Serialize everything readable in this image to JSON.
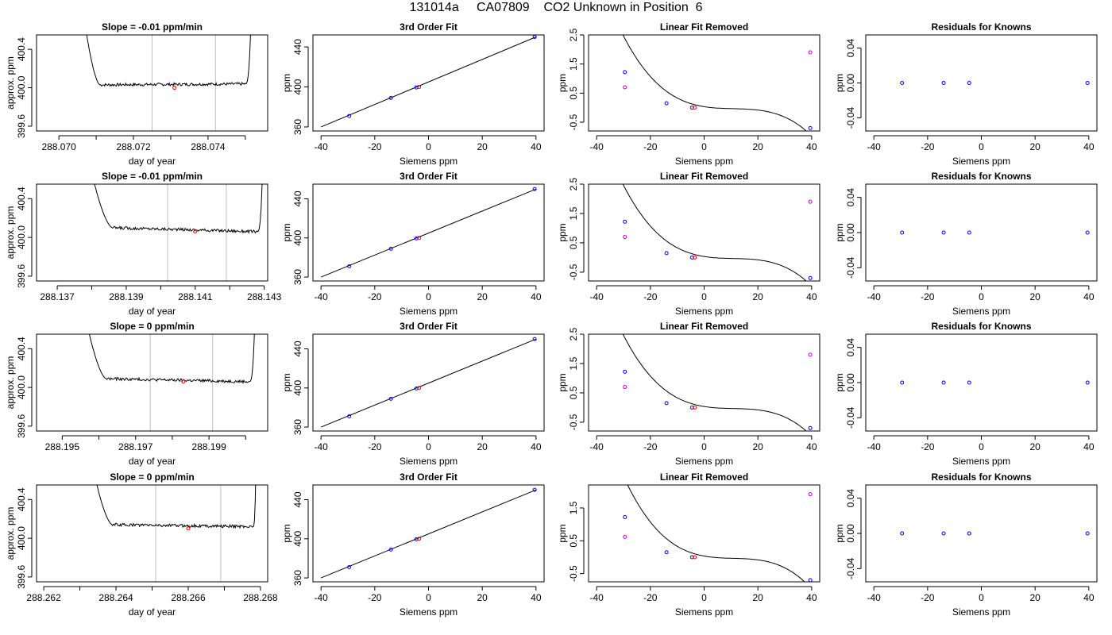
{
  "page_title": "131014a     CA07809    CO2 Unknown in Position  6",
  "colors": {
    "line": "#000000",
    "blue": "#0000ff",
    "red": "#ff0000",
    "magenta": "#d000d0",
    "vline": "#bebebe"
  },
  "chart_data": [
    {
      "type": "line",
      "row": 0,
      "col": 0,
      "title": "Slope =  -0.01  ppm/min",
      "xlabel": "day of year",
      "ylabel": "approx. ppm",
      "xlim": [
        288.0694,
        288.0756
      ],
      "ylim": [
        399.55,
        400.55
      ],
      "xticks": [
        288.07,
        288.071,
        288.072,
        288.073,
        288.074,
        288.075
      ],
      "xticklabels": [
        "288.070",
        "",
        "288.072",
        "",
        "288.074",
        ""
      ],
      "yticks": [
        399.6,
        400.0,
        400.4
      ],
      "yticklabels": [
        "399.6",
        "400.0",
        "400.4"
      ],
      "vlines": [
        288.0725,
        288.0742
      ],
      "marker": {
        "x": 288.0731,
        "y": 400.0
      },
      "trace": {
        "x_start": 288.0706,
        "x_end": 288.0752,
        "plateau_start": 288.0711,
        "plateau_end": 288.075,
        "level_start": 400.03,
        "level_end": 400.04
      }
    },
    {
      "type": "scatter",
      "row": 0,
      "col": 1,
      "title": "3rd Order Fit",
      "xlabel": "Siemens ppm",
      "ylabel": "ppm",
      "xlim": [
        -43,
        43
      ],
      "ylim": [
        356,
        452
      ],
      "xticks": [
        -40,
        -20,
        0,
        20,
        40
      ],
      "yticks": [
        360,
        400,
        440
      ],
      "fit_line": [
        [
          -40,
          360
        ],
        [
          40,
          450
        ]
      ],
      "points": [
        {
          "x": -29.5,
          "y": 371,
          "color": "blue"
        },
        {
          "x": -14,
          "y": 389,
          "color": "blue"
        },
        {
          "x": -4.5,
          "y": 399.5,
          "color": "blue"
        },
        {
          "x": -3.5,
          "y": 400,
          "color": "red"
        },
        {
          "x": 39.5,
          "y": 450,
          "color": "blue"
        }
      ]
    },
    {
      "type": "scatter",
      "row": 0,
      "col": 2,
      "title": "Linear Fit Removed",
      "xlabel": "Siemens ppm",
      "ylabel": "ppm",
      "xlim": [
        -43,
        43
      ],
      "ylim": [
        -0.8,
        2.5
      ],
      "xticks": [
        -40,
        -20,
        0,
        20,
        40
      ],
      "yticks": [
        -0.5,
        0.5,
        1.5,
        2.5
      ],
      "yticklabels": [
        "-0.5",
        "0.5",
        "1.5",
        "2.5"
      ],
      "curve": {
        "a": -3.53e-05,
        "b": 0.00115,
        "c": -0.0147,
        "d": 0.035,
        "x_from": -39,
        "x_to": 40
      },
      "points": [
        {
          "x": -29.5,
          "y": 1.22,
          "color": "blue"
        },
        {
          "x": -14,
          "y": 0.15,
          "color": "blue"
        },
        {
          "x": -4.5,
          "y": 0.0,
          "color": "blue"
        },
        {
          "x": -3.5,
          "y": 0.0,
          "color": "red"
        },
        {
          "x": 39.5,
          "y": -0.7,
          "color": "blue"
        },
        {
          "x": -29.5,
          "y": 0.7,
          "color": "magenta"
        },
        {
          "x": 39.5,
          "y": 1.9,
          "color": "magenta"
        }
      ]
    },
    {
      "type": "scatter",
      "row": 0,
      "col": 3,
      "title": "Residuals for Knowns",
      "xlabel": "Siemens ppm",
      "ylabel": "ppm",
      "xlim": [
        -43,
        43
      ],
      "ylim": [
        -0.055,
        0.055
      ],
      "xticks": [
        -40,
        -20,
        0,
        20,
        40
      ],
      "yticks": [
        -0.04,
        0.0,
        0.04
      ],
      "yticklabels": [
        "-0.04",
        "0.00",
        "0.04"
      ],
      "points": [
        {
          "x": -29.5,
          "y": 0.0,
          "color": "blue"
        },
        {
          "x": -14,
          "y": 0.0,
          "color": "blue"
        },
        {
          "x": -4.5,
          "y": 0.0,
          "color": "blue"
        },
        {
          "x": 39.5,
          "y": 0.0,
          "color": "blue"
        }
      ]
    },
    {
      "type": "line",
      "row": 1,
      "col": 0,
      "title": "Slope =  -0.01  ppm/min",
      "xlabel": "day of year",
      "ylabel": "approx. ppm",
      "xlim": [
        288.1364,
        288.1431
      ],
      "ylim": [
        399.55,
        400.55
      ],
      "xticks": [
        288.137,
        288.138,
        288.139,
        288.14,
        288.141,
        288.142,
        288.143
      ],
      "xticklabels": [
        "288.137",
        "",
        "288.139",
        "",
        "288.141",
        "",
        "288.143"
      ],
      "yticks": [
        399.6,
        400.0,
        400.4
      ],
      "yticklabels": [
        "399.6",
        "400.0",
        "400.4"
      ],
      "vlines": [
        288.1402,
        288.1419
      ],
      "marker": {
        "x": 288.141,
        "y": 400.06
      },
      "trace": {
        "x_start": 288.1378,
        "x_end": 288.143,
        "plateau_start": 288.1386,
        "plateau_end": 288.1428,
        "level_start": 400.1,
        "level_end": 400.06
      }
    },
    {
      "type": "scatter",
      "row": 1,
      "col": 1,
      "title": "3rd Order Fit",
      "xlabel": "Siemens ppm",
      "ylabel": "ppm",
      "xlim": [
        -43,
        43
      ],
      "ylim": [
        356,
        455
      ],
      "xticks": [
        -40,
        -20,
        0,
        20,
        40
      ],
      "yticks": [
        360,
        400,
        440
      ],
      "fit_line": [
        [
          -40,
          360
        ],
        [
          40,
          450
        ]
      ],
      "points": [
        {
          "x": -29.5,
          "y": 371,
          "color": "blue"
        },
        {
          "x": -14,
          "y": 389,
          "color": "blue"
        },
        {
          "x": -4.5,
          "y": 399.5,
          "color": "blue"
        },
        {
          "x": -3.5,
          "y": 400,
          "color": "red"
        },
        {
          "x": 39.5,
          "y": 450,
          "color": "blue"
        }
      ]
    },
    {
      "type": "scatter",
      "row": 1,
      "col": 2,
      "title": "Linear Fit Removed",
      "xlabel": "Siemens ppm",
      "ylabel": "ppm",
      "xlim": [
        -43,
        43
      ],
      "ylim": [
        -0.8,
        2.5
      ],
      "xticks": [
        -40,
        -20,
        0,
        20,
        40
      ],
      "yticks": [
        -0.5,
        0.5,
        1.5,
        2.5
      ],
      "yticklabels": [
        "-0.5",
        "0.5",
        "1.5",
        "2.5"
      ],
      "curve": {
        "a": -3.53e-05,
        "b": 0.00115,
        "c": -0.0147,
        "d": 0.035,
        "x_from": -39,
        "x_to": 40
      },
      "points": [
        {
          "x": -29.5,
          "y": 1.22,
          "color": "blue"
        },
        {
          "x": -14,
          "y": 0.15,
          "color": "blue"
        },
        {
          "x": -4.5,
          "y": 0.0,
          "color": "blue"
        },
        {
          "x": -3.5,
          "y": 0.0,
          "color": "red"
        },
        {
          "x": 39.5,
          "y": -0.7,
          "color": "blue"
        },
        {
          "x": -29.5,
          "y": 0.7,
          "color": "magenta"
        },
        {
          "x": 39.5,
          "y": 1.9,
          "color": "magenta"
        }
      ]
    },
    {
      "type": "scatter",
      "row": 1,
      "col": 3,
      "title": "Residuals for Knowns",
      "xlabel": "Siemens ppm",
      "ylabel": "ppm",
      "xlim": [
        -43,
        43
      ],
      "ylim": [
        -0.055,
        0.055
      ],
      "xticks": [
        -40,
        -20,
        0,
        20,
        40
      ],
      "yticks": [
        -0.04,
        0.0,
        0.04
      ],
      "yticklabels": [
        "-0.04",
        "0.00",
        "0.04"
      ],
      "points": [
        {
          "x": -29.5,
          "y": 0.0,
          "color": "blue"
        },
        {
          "x": -14,
          "y": 0.0,
          "color": "blue"
        },
        {
          "x": -4.5,
          "y": 0.0,
          "color": "blue"
        },
        {
          "x": 39.5,
          "y": 0.0,
          "color": "blue"
        }
      ]
    },
    {
      "type": "line",
      "row": 2,
      "col": 0,
      "title": "Slope =  0  ppm/min",
      "xlabel": "day of year",
      "ylabel": "approx. ppm",
      "xlim": [
        288.1943,
        288.2006
      ],
      "ylim": [
        399.55,
        400.55
      ],
      "xticks": [
        288.195,
        288.196,
        288.197,
        288.198,
        288.199,
        288.2
      ],
      "xticklabels": [
        "288.195",
        "",
        "288.197",
        "",
        "288.199",
        ""
      ],
      "yticks": [
        399.6,
        400.0,
        400.4
      ],
      "yticklabels": [
        "399.6",
        "400.0",
        "400.4"
      ],
      "vlines": [
        288.1974,
        288.1991
      ],
      "marker": {
        "x": 288.1983,
        "y": 400.06
      },
      "trace": {
        "x_start": 288.1955,
        "x_end": 288.2003,
        "plateau_start": 288.1962,
        "plateau_end": 288.2001,
        "level_start": 400.09,
        "level_end": 400.06
      }
    },
    {
      "type": "scatter",
      "row": 2,
      "col": 1,
      "title": "3rd Order Fit",
      "xlabel": "Siemens ppm",
      "ylabel": "ppm",
      "xlim": [
        -43,
        43
      ],
      "ylim": [
        356,
        455
      ],
      "xticks": [
        -40,
        -20,
        0,
        20,
        40
      ],
      "yticks": [
        360,
        400,
        440
      ],
      "fit_line": [
        [
          -40,
          360
        ],
        [
          40,
          450
        ]
      ],
      "points": [
        {
          "x": -29.5,
          "y": 371,
          "color": "blue"
        },
        {
          "x": -14,
          "y": 389,
          "color": "blue"
        },
        {
          "x": -4.5,
          "y": 399.5,
          "color": "blue"
        },
        {
          "x": -3.5,
          "y": 400,
          "color": "red"
        },
        {
          "x": 39.5,
          "y": 450,
          "color": "blue"
        }
      ]
    },
    {
      "type": "scatter",
      "row": 2,
      "col": 2,
      "title": "Linear Fit Removed",
      "xlabel": "Siemens ppm",
      "ylabel": "ppm",
      "xlim": [
        -43,
        43
      ],
      "ylim": [
        -0.8,
        2.5
      ],
      "xticks": [
        -40,
        -20,
        0,
        20,
        40
      ],
      "yticks": [
        -0.5,
        0.5,
        1.5,
        2.5
      ],
      "yticklabels": [
        "-0.5",
        "0.5",
        "1.5",
        "2.5"
      ],
      "curve": {
        "a": -3.53e-05,
        "b": 0.00115,
        "c": -0.0147,
        "d": 0.035,
        "x_from": -39,
        "x_to": 40
      },
      "points": [
        {
          "x": -29.5,
          "y": 1.22,
          "color": "blue"
        },
        {
          "x": -14,
          "y": 0.15,
          "color": "blue"
        },
        {
          "x": -4.5,
          "y": 0.0,
          "color": "blue"
        },
        {
          "x": -3.5,
          "y": 0.0,
          "color": "red"
        },
        {
          "x": 39.5,
          "y": -0.7,
          "color": "blue"
        },
        {
          "x": -29.5,
          "y": 0.7,
          "color": "magenta"
        },
        {
          "x": 39.5,
          "y": 1.8,
          "color": "magenta"
        }
      ]
    },
    {
      "type": "scatter",
      "row": 2,
      "col": 3,
      "title": "Residuals for Knowns",
      "xlabel": "Siemens ppm",
      "ylabel": "ppm",
      "xlim": [
        -43,
        43
      ],
      "ylim": [
        -0.055,
        0.055
      ],
      "xticks": [
        -40,
        -20,
        0,
        20,
        40
      ],
      "yticks": [
        -0.04,
        0.0,
        0.04
      ],
      "yticklabels": [
        "-0.04",
        "0.00",
        "0.04"
      ],
      "points": [
        {
          "x": -29.5,
          "y": 0.0,
          "color": "blue"
        },
        {
          "x": -14,
          "y": 0.0,
          "color": "blue"
        },
        {
          "x": -4.5,
          "y": 0.0,
          "color": "blue"
        },
        {
          "x": 39.5,
          "y": 0.0,
          "color": "blue"
        }
      ]
    },
    {
      "type": "line",
      "row": 3,
      "col": 0,
      "title": "Slope =  0  ppm/min",
      "xlabel": "day of year",
      "ylabel": "approx. ppm",
      "xlim": [
        288.2618,
        288.2682
      ],
      "ylim": [
        399.55,
        400.55
      ],
      "xticks": [
        288.262,
        288.263,
        288.264,
        288.265,
        288.266,
        288.267,
        288.268
      ],
      "xticklabels": [
        "288.262",
        "",
        "288.264",
        "",
        "288.266",
        "",
        "288.268"
      ],
      "yticks": [
        399.6,
        400.0,
        400.4
      ],
      "yticklabels": [
        "399.6",
        "400.0",
        "400.4"
      ],
      "vlines": [
        288.2651,
        288.2669
      ],
      "marker": {
        "x": 288.266,
        "y": 400.1
      },
      "trace": {
        "x_start": 288.2632,
        "x_end": 288.2679,
        "plateau_start": 288.2639,
        "plateau_end": 288.2678,
        "level_start": 400.14,
        "level_end": 400.12
      }
    },
    {
      "type": "scatter",
      "row": 3,
      "col": 1,
      "title": "3rd Order Fit",
      "xlabel": "Siemens ppm",
      "ylabel": "ppm",
      "xlim": [
        -43,
        43
      ],
      "ylim": [
        356,
        455
      ],
      "xticks": [
        -40,
        -20,
        0,
        20,
        40
      ],
      "yticks": [
        360,
        400,
        440
      ],
      "fit_line": [
        [
          -40,
          360
        ],
        [
          40,
          450
        ]
      ],
      "points": [
        {
          "x": -29.5,
          "y": 371,
          "color": "blue"
        },
        {
          "x": -14,
          "y": 389,
          "color": "blue"
        },
        {
          "x": -4.5,
          "y": 399.5,
          "color": "blue"
        },
        {
          "x": -3.5,
          "y": 400,
          "color": "red"
        },
        {
          "x": 39.5,
          "y": 450,
          "color": "blue"
        }
      ]
    },
    {
      "type": "scatter",
      "row": 3,
      "col": 2,
      "title": "Linear Fit Removed",
      "xlabel": "Siemens ppm",
      "ylabel": "ppm",
      "xlim": [
        -43,
        43
      ],
      "ylim": [
        -0.75,
        2.2
      ],
      "xticks": [
        -40,
        -20,
        0,
        20,
        40
      ],
      "yticks": [
        -0.5,
        0.5,
        1.5
      ],
      "yticklabels": [
        "-0.5",
        "0.5",
        "1.5"
      ],
      "curve": {
        "a": -3.53e-05,
        "b": 0.00115,
        "c": -0.0147,
        "d": 0.035,
        "x_from": -39,
        "x_to": 40
      },
      "points": [
        {
          "x": -29.5,
          "y": 1.22,
          "color": "blue"
        },
        {
          "x": -14,
          "y": 0.15,
          "color": "blue"
        },
        {
          "x": -4.5,
          "y": 0.0,
          "color": "blue"
        },
        {
          "x": -3.5,
          "y": 0.0,
          "color": "red"
        },
        {
          "x": 39.5,
          "y": -0.7,
          "color": "blue"
        },
        {
          "x": -29.5,
          "y": 0.62,
          "color": "magenta"
        },
        {
          "x": 39.5,
          "y": 1.92,
          "color": "magenta"
        }
      ]
    },
    {
      "type": "scatter",
      "row": 3,
      "col": 3,
      "title": "Residuals for Knowns",
      "xlabel": "Siemens ppm",
      "ylabel": "ppm",
      "xlim": [
        -43,
        43
      ],
      "ylim": [
        -0.055,
        0.055
      ],
      "xticks": [
        -40,
        -20,
        0,
        20,
        40
      ],
      "yticks": [
        -0.04,
        0.0,
        0.04
      ],
      "yticklabels": [
        "-0.04",
        "0.00",
        "0.04"
      ],
      "points": [
        {
          "x": -29.5,
          "y": 0.0,
          "color": "blue"
        },
        {
          "x": -14,
          "y": 0.0,
          "color": "blue"
        },
        {
          "x": -4.5,
          "y": 0.0,
          "color": "blue"
        },
        {
          "x": 39.5,
          "y": 0.0,
          "color": "blue"
        }
      ]
    }
  ]
}
